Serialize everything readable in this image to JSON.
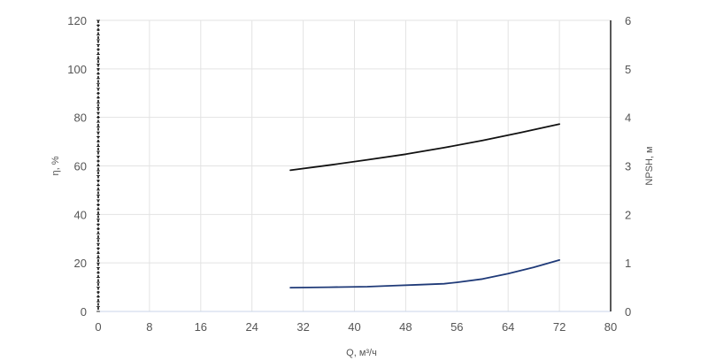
{
  "chart_data": {
    "type": "line",
    "xlabel": "Q, м³/ч",
    "ylabel_left": "η, %",
    "ylabel_right": "NPSH, м",
    "xlim": [
      0,
      80
    ],
    "ylim_left": [
      0,
      120
    ],
    "ylim_right": [
      0,
      6
    ],
    "x_ticks": [
      "0",
      "8",
      "16",
      "24",
      "32",
      "40",
      "48",
      "56",
      "64",
      "72",
      "80"
    ],
    "y_left_ticks": [
      "0",
      "20",
      "40",
      "60",
      "80",
      "100",
      "120"
    ],
    "y_right_ticks": [
      "0",
      "1",
      "2",
      "3",
      "4",
      "5",
      "6"
    ],
    "grid": true,
    "series": [
      {
        "axis": "left",
        "color": "#111111",
        "x": [
          30,
          36,
          42,
          48,
          54,
          60,
          66,
          72
        ],
        "y": [
          58.2,
          60.3,
          62.5,
          64.8,
          67.5,
          70.5,
          73.8,
          77.2
        ]
      },
      {
        "axis": "right",
        "color": "#1f3a78",
        "x": [
          30,
          36,
          42,
          46,
          50,
          54,
          56,
          60,
          64,
          68,
          72
        ],
        "y": [
          0.49,
          0.5,
          0.51,
          0.53,
          0.55,
          0.57,
          0.6,
          0.67,
          0.78,
          0.91,
          1.06
        ]
      }
    ]
  }
}
